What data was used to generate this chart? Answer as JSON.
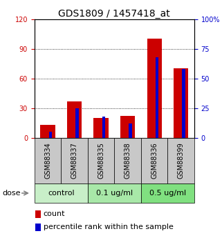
{
  "title": "GDS1809 / 1457418_at",
  "samples": [
    "GSM88334",
    "GSM88337",
    "GSM88335",
    "GSM88338",
    "GSM88336",
    "GSM88399"
  ],
  "count_values": [
    13,
    37,
    20,
    22,
    100,
    70
  ],
  "percentile_values": [
    5,
    25,
    18,
    12,
    68,
    58
  ],
  "groups": [
    {
      "label": "control",
      "indices": [
        0,
        1
      ],
      "color": "#c8efc8"
    },
    {
      "label": "0.1 ug/ml",
      "indices": [
        2,
        3
      ],
      "color": "#a8e8a8"
    },
    {
      "label": "0.5 ug/ml",
      "indices": [
        4,
        5
      ],
      "color": "#80e080"
    }
  ],
  "left_yticks": [
    0,
    30,
    60,
    90,
    120
  ],
  "right_yticks": [
    0,
    25,
    50,
    75,
    100
  ],
  "right_yticklabels": [
    "0",
    "25",
    "50",
    "75",
    "100%"
  ],
  "ylim_left": [
    0,
    120
  ],
  "ylim_right": [
    0,
    100
  ],
  "count_color": "#cc0000",
  "percentile_color": "#0000cc",
  "grid_color": "#000000",
  "background_color": "#ffffff",
  "plot_bg_color": "#ffffff",
  "sample_bg_color": "#c8c8c8",
  "dose_label": "dose",
  "legend_count": "count",
  "legend_percentile": "percentile rank within the sample",
  "title_fontsize": 10,
  "tick_fontsize": 7,
  "sample_fontsize": 7,
  "group_label_fontsize": 8,
  "legend_fontsize": 8
}
